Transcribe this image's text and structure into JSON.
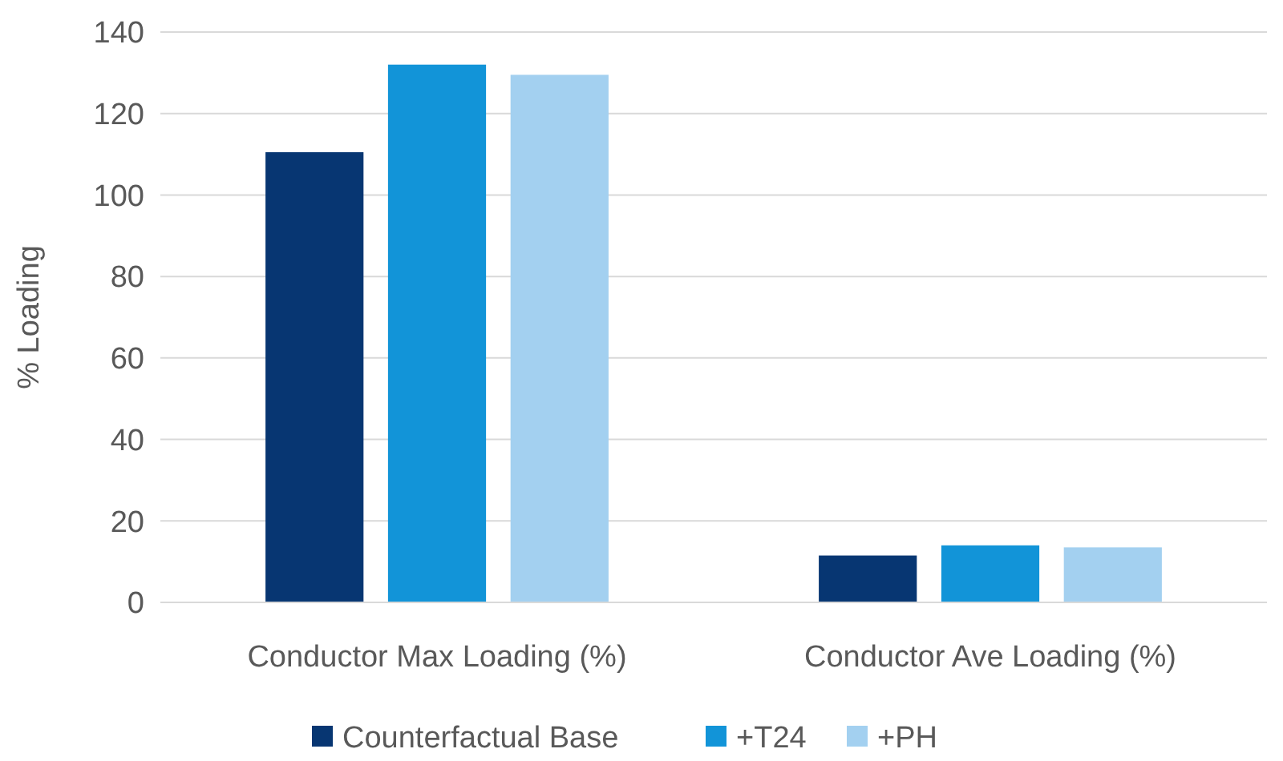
{
  "chart_data": {
    "type": "bar",
    "ylabel": "% Loading",
    "categories": [
      "Conductor Max Loading (%)",
      "Conductor Ave Loading (%)"
    ],
    "series": [
      {
        "name": "Counterfactual Base",
        "color": "#073672",
        "values": [
          110.5,
          11.5
        ]
      },
      {
        "name": "+T24",
        "color": "#1294d8",
        "values": [
          132,
          14
        ]
      },
      {
        "name": "+PH",
        "color": "#a3d0f0",
        "values": [
          129.5,
          13.5
        ]
      }
    ],
    "ylim": [
      0,
      140
    ],
    "yticks": [
      0,
      20,
      40,
      60,
      80,
      100,
      120,
      140
    ],
    "grid": "y",
    "legend": "bottom"
  }
}
